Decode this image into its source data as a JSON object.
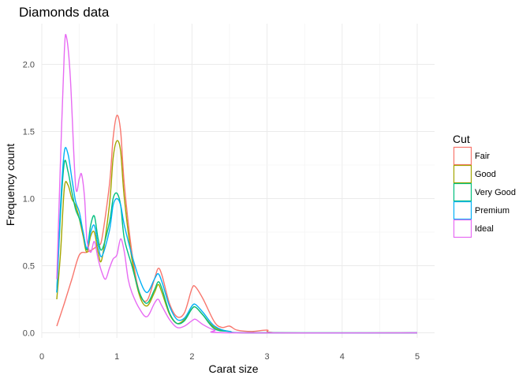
{
  "chart_data": {
    "type": "line",
    "title": "Diamonds data",
    "xlabel": "Carat size",
    "ylabel": "Frequency count",
    "xlim": [
      0,
      5.2
    ],
    "ylim": [
      -0.05,
      2.28
    ],
    "x_ticks": [
      0,
      1,
      2,
      3,
      4,
      5
    ],
    "x_tick_labels": [
      "0",
      "1",
      "2",
      "3",
      "4",
      "5"
    ],
    "y_ticks": [
      0,
      0.5,
      1,
      1.5,
      2
    ],
    "y_tick_labels": [
      "0.0",
      "0.5",
      "1.0",
      "1.5",
      "2.0"
    ],
    "grid": true,
    "legend": {
      "title": "Cut",
      "position": "right"
    },
    "series": [
      {
        "name": "Fair",
        "color": "#F8766D",
        "points": [
          [
            0.2,
            0.05
          ],
          [
            0.3,
            0.22
          ],
          [
            0.4,
            0.4
          ],
          [
            0.5,
            0.58
          ],
          [
            0.6,
            0.6
          ],
          [
            0.7,
            0.63
          ],
          [
            0.75,
            0.66
          ],
          [
            0.8,
            0.7
          ],
          [
            0.9,
            1.1
          ],
          [
            0.95,
            1.45
          ],
          [
            1.0,
            1.62
          ],
          [
            1.05,
            1.5
          ],
          [
            1.1,
            1.1
          ],
          [
            1.2,
            0.6
          ],
          [
            1.3,
            0.3
          ],
          [
            1.4,
            0.24
          ],
          [
            1.5,
            0.4
          ],
          [
            1.55,
            0.48
          ],
          [
            1.6,
            0.43
          ],
          [
            1.7,
            0.22
          ],
          [
            1.8,
            0.12
          ],
          [
            1.9,
            0.15
          ],
          [
            2.0,
            0.33
          ],
          [
            2.05,
            0.34
          ],
          [
            2.15,
            0.25
          ],
          [
            2.3,
            0.08
          ],
          [
            2.4,
            0.04
          ],
          [
            2.5,
            0.05
          ],
          [
            2.6,
            0.02
          ],
          [
            2.8,
            0.01
          ],
          [
            3.0,
            0.02
          ],
          [
            3.2,
            0.0
          ],
          [
            5.0,
            0.0
          ]
        ]
      },
      {
        "name": "Good",
        "color": "#A3A500",
        "points": [
          [
            0.2,
            0.25
          ],
          [
            0.25,
            0.6
          ],
          [
            0.3,
            1.08
          ],
          [
            0.35,
            1.1
          ],
          [
            0.4,
            1.0
          ],
          [
            0.45,
            0.95
          ],
          [
            0.5,
            0.85
          ],
          [
            0.55,
            0.72
          ],
          [
            0.6,
            0.6
          ],
          [
            0.65,
            0.72
          ],
          [
            0.7,
            0.75
          ],
          [
            0.75,
            0.6
          ],
          [
            0.8,
            0.55
          ],
          [
            0.9,
            0.95
          ],
          [
            0.95,
            1.3
          ],
          [
            1.0,
            1.43
          ],
          [
            1.05,
            1.35
          ],
          [
            1.1,
            1.0
          ],
          [
            1.2,
            0.55
          ],
          [
            1.3,
            0.28
          ],
          [
            1.4,
            0.2
          ],
          [
            1.5,
            0.3
          ],
          [
            1.55,
            0.36
          ],
          [
            1.6,
            0.3
          ],
          [
            1.7,
            0.14
          ],
          [
            1.8,
            0.07
          ],
          [
            1.9,
            0.1
          ],
          [
            2.0,
            0.18
          ],
          [
            2.05,
            0.19
          ],
          [
            2.15,
            0.13
          ],
          [
            2.3,
            0.04
          ],
          [
            2.5,
            0.01
          ],
          [
            2.8,
            0.0
          ],
          [
            5.0,
            0.0
          ]
        ]
      },
      {
        "name": "Very Good",
        "color": "#00BF7D",
        "points": [
          [
            0.2,
            0.3
          ],
          [
            0.25,
            0.9
          ],
          [
            0.3,
            1.27
          ],
          [
            0.35,
            1.2
          ],
          [
            0.4,
            1.05
          ],
          [
            0.45,
            0.92
          ],
          [
            0.5,
            0.85
          ],
          [
            0.55,
            0.75
          ],
          [
            0.6,
            0.62
          ],
          [
            0.65,
            0.8
          ],
          [
            0.7,
            0.87
          ],
          [
            0.75,
            0.7
          ],
          [
            0.8,
            0.62
          ],
          [
            0.9,
            0.82
          ],
          [
            0.95,
            1.0
          ],
          [
            1.0,
            1.04
          ],
          [
            1.05,
            0.95
          ],
          [
            1.1,
            0.7
          ],
          [
            1.2,
            0.5
          ],
          [
            1.3,
            0.3
          ],
          [
            1.4,
            0.22
          ],
          [
            1.5,
            0.32
          ],
          [
            1.55,
            0.38
          ],
          [
            1.6,
            0.33
          ],
          [
            1.7,
            0.15
          ],
          [
            1.8,
            0.07
          ],
          [
            1.9,
            0.09
          ],
          [
            2.0,
            0.18
          ],
          [
            2.05,
            0.19
          ],
          [
            2.15,
            0.13
          ],
          [
            2.3,
            0.03
          ],
          [
            2.5,
            0.01
          ],
          [
            2.8,
            0.0
          ],
          [
            5.0,
            0.0
          ]
        ]
      },
      {
        "name": "Premium",
        "color": "#00B0F6",
        "points": [
          [
            0.2,
            0.3
          ],
          [
            0.25,
            0.95
          ],
          [
            0.3,
            1.35
          ],
          [
            0.35,
            1.33
          ],
          [
            0.4,
            1.15
          ],
          [
            0.45,
            0.98
          ],
          [
            0.5,
            0.9
          ],
          [
            0.55,
            0.75
          ],
          [
            0.6,
            0.63
          ],
          [
            0.65,
            0.75
          ],
          [
            0.7,
            0.8
          ],
          [
            0.75,
            0.65
          ],
          [
            0.8,
            0.57
          ],
          [
            0.9,
            0.76
          ],
          [
            0.95,
            0.95
          ],
          [
            1.0,
            1.0
          ],
          [
            1.05,
            0.95
          ],
          [
            1.1,
            0.8
          ],
          [
            1.2,
            0.58
          ],
          [
            1.3,
            0.4
          ],
          [
            1.4,
            0.3
          ],
          [
            1.5,
            0.4
          ],
          [
            1.55,
            0.44
          ],
          [
            1.6,
            0.38
          ],
          [
            1.7,
            0.2
          ],
          [
            1.8,
            0.1
          ],
          [
            1.9,
            0.11
          ],
          [
            2.0,
            0.2
          ],
          [
            2.05,
            0.21
          ],
          [
            2.15,
            0.15
          ],
          [
            2.3,
            0.05
          ],
          [
            2.5,
            0.01
          ],
          [
            2.8,
            0.0
          ],
          [
            5.0,
            0.0
          ]
        ]
      },
      {
        "name": "Ideal",
        "color": "#E76BF3",
        "points": [
          [
            0.2,
            0.4
          ],
          [
            0.25,
            1.3
          ],
          [
            0.3,
            2.1
          ],
          [
            0.33,
            2.2
          ],
          [
            0.38,
            1.9
          ],
          [
            0.45,
            1.1
          ],
          [
            0.5,
            1.15
          ],
          [
            0.53,
            1.18
          ],
          [
            0.57,
            1.0
          ],
          [
            0.6,
            0.7
          ],
          [
            0.65,
            0.6
          ],
          [
            0.7,
            0.68
          ],
          [
            0.75,
            0.55
          ],
          [
            0.8,
            0.45
          ],
          [
            0.85,
            0.4
          ],
          [
            0.9,
            0.48
          ],
          [
            0.95,
            0.55
          ],
          [
            1.0,
            0.58
          ],
          [
            1.05,
            0.7
          ],
          [
            1.1,
            0.6
          ],
          [
            1.15,
            0.4
          ],
          [
            1.2,
            0.3
          ],
          [
            1.3,
            0.18
          ],
          [
            1.4,
            0.12
          ],
          [
            1.5,
            0.22
          ],
          [
            1.55,
            0.25
          ],
          [
            1.6,
            0.2
          ],
          [
            1.7,
            0.1
          ],
          [
            1.8,
            0.04
          ],
          [
            1.9,
            0.05
          ],
          [
            2.0,
            0.09
          ],
          [
            2.05,
            0.1
          ],
          [
            2.15,
            0.06
          ],
          [
            2.3,
            0.02
          ],
          [
            2.5,
            0.0
          ],
          [
            5.0,
            0.0
          ]
        ]
      }
    ]
  }
}
